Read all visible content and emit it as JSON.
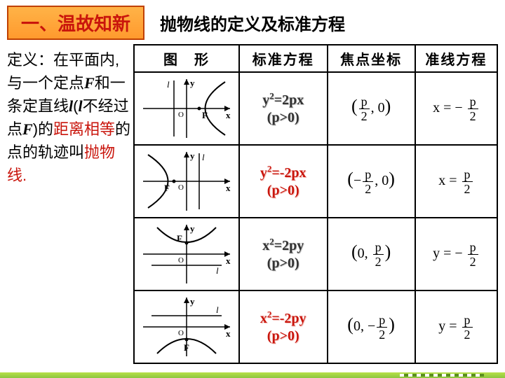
{
  "badge": "一、温故知新",
  "title": "抛物线的定义及标准方程",
  "definition": {
    "parts": [
      {
        "t": "定义：在平面内,与一个定点",
        "cls": ""
      },
      {
        "t": "F",
        "cls": "em"
      },
      {
        "t": "和一条定直线",
        "cls": ""
      },
      {
        "t": "l",
        "cls": "em"
      },
      {
        "t": "(",
        "cls": ""
      },
      {
        "t": "l",
        "cls": "em"
      },
      {
        "t": "不经过点",
        "cls": ""
      },
      {
        "t": "F",
        "cls": "em"
      },
      {
        "t": ")的",
        "cls": ""
      },
      {
        "t": "距离相等",
        "cls": "red"
      },
      {
        "t": "的点的轨迹叫",
        "cls": ""
      },
      {
        "t": "抛物线.",
        "cls": "red"
      }
    ]
  },
  "headers": [
    "图　形",
    "标准方程",
    "焦点坐标",
    "准线方程"
  ],
  "rows": [
    {
      "fig": "right",
      "eq": {
        "html": "<span class='outline'>y<sup>2</sup>=2px</span><br><span class='outline'>(p&gt;0)</span>"
      },
      "focus": {
        "html": "<span class='big'>(</span><span class='frac'><span class='n'>p</span><span class='d'>2</span></span>, 0<span class='big'>)</span>",
        "cls": ""
      },
      "dir": {
        "html": "x = &minus; <span class='frac'><span class='n'>p</span><span class='d'>2</span></span>",
        "cls": ""
      }
    },
    {
      "fig": "left",
      "eq": {
        "html": "<span class='red-o'>y<sup>2</sup>=-2px</span><br><span class='red-o'>(p&gt;0)</span>"
      },
      "focus": {
        "html": "<span class='big'>(</span>&minus;<span class='frac'><span class='n'>p</span><span class='d'>2</span></span>, 0<span class='big'>)</span>",
        "cls": "red"
      },
      "dir": {
        "html": "x = <span class='frac'><span class='n'>p</span><span class='d'>2</span></span>",
        "cls": "red"
      }
    },
    {
      "fig": "up",
      "eq": {
        "html": "<span class='outline'>x<sup>2</sup>=2py</span><br><span class='outline'>(p&gt;0)</span>"
      },
      "focus": {
        "html": "<span class='big'>(</span>0, <span class='frac'><span class='n'>p</span><span class='d'>2</span></span><span class='big'>)</span>",
        "cls": ""
      },
      "dir": {
        "html": "y = &minus; <span class='frac'><span class='n'>p</span><span class='d'>2</span></span>",
        "cls": ""
      }
    },
    {
      "fig": "down",
      "eq": {
        "html": "<span class='red-o'>x<sup>2</sup>=-2py</span><br><span class='red-o'>(p&gt;0)</span>"
      },
      "focus": {
        "html": "<span class='big'>(</span>0, &minus;<span class='frac'><span class='n'>p</span><span class='d'>2</span></span><span class='big'>)</span>",
        "cls": "red"
      },
      "dir": {
        "html": "y = <span class='frac'><span class='n'>p</span><span class='d'>2</span></span>",
        "cls": "red"
      }
    }
  ],
  "svg": {
    "axisColor": "#000",
    "curveColor": "#000",
    "lineColor": "#000",
    "labels": {
      "x": "x",
      "y": "y",
      "O": "O",
      "F": "F",
      "l": "l"
    },
    "labelFont": "italic bold 13px 'Times New Roman', serif"
  }
}
